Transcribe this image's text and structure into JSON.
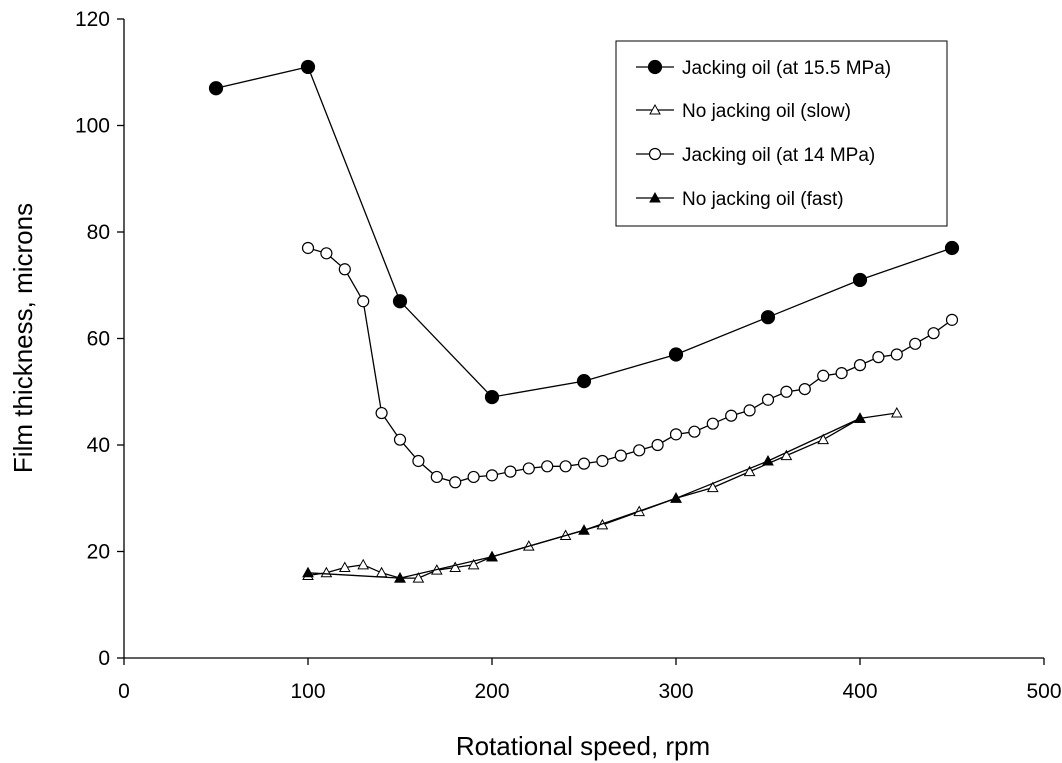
{
  "chart_data": {
    "type": "line",
    "xlabel": "Rotational speed, rpm",
    "ylabel": "Film thickness, microns",
    "xlim": [
      0,
      500
    ],
    "ylim": [
      0,
      120
    ],
    "xticks": [
      "0",
      "100",
      "200",
      "300",
      "400",
      "500"
    ],
    "yticks": [
      "0",
      "20",
      "40",
      "60",
      "80",
      "100",
      "120"
    ],
    "grid": false,
    "legend_position": "top-right",
    "series": [
      {
        "name": "Jacking oil (at 15.5 MPa)",
        "marker": "filled-circle",
        "x": [
          50,
          100,
          150,
          200,
          250,
          300,
          350,
          400,
          450
        ],
        "y": [
          107,
          111,
          67,
          49,
          52,
          57,
          64,
          71,
          77
        ]
      },
      {
        "name": "No jacking oil (slow)",
        "marker": "open-triangle",
        "x": [
          100,
          110,
          120,
          130,
          140,
          150,
          160,
          170,
          180,
          190,
          200,
          220,
          240,
          260,
          280,
          300,
          320,
          340,
          360,
          380,
          400,
          420
        ],
        "y": [
          15.5,
          16,
          17,
          17.5,
          16,
          15,
          15,
          16.5,
          17,
          17.5,
          19,
          21,
          23,
          25,
          27.5,
          30,
          32,
          35,
          38,
          41,
          45,
          46
        ]
      },
      {
        "name": "Jacking oil (at 14 MPa)",
        "marker": "open-circle",
        "x": [
          100,
          110,
          120,
          130,
          140,
          150,
          160,
          170,
          180,
          190,
          200,
          210,
          220,
          230,
          240,
          250,
          260,
          270,
          280,
          290,
          300,
          310,
          320,
          330,
          340,
          350,
          360,
          370,
          380,
          390,
          400,
          410,
          420,
          430,
          440,
          450
        ],
        "y": [
          77,
          76,
          73,
          67,
          46,
          41,
          37,
          34,
          33,
          34,
          34.3,
          35,
          35.6,
          36,
          36,
          36.5,
          37,
          38,
          39,
          40,
          42,
          42.5,
          44,
          45.5,
          46.5,
          48.5,
          50,
          50.5,
          53,
          53.5,
          55,
          56.5,
          57,
          59,
          61,
          63.5
        ]
      },
      {
        "name": "No jacking oil (fast)",
        "marker": "filled-triangle",
        "x": [
          100,
          150,
          200,
          250,
          300,
          350,
          400
        ],
        "y": [
          16,
          15,
          19,
          24,
          30,
          37,
          45
        ]
      }
    ]
  }
}
